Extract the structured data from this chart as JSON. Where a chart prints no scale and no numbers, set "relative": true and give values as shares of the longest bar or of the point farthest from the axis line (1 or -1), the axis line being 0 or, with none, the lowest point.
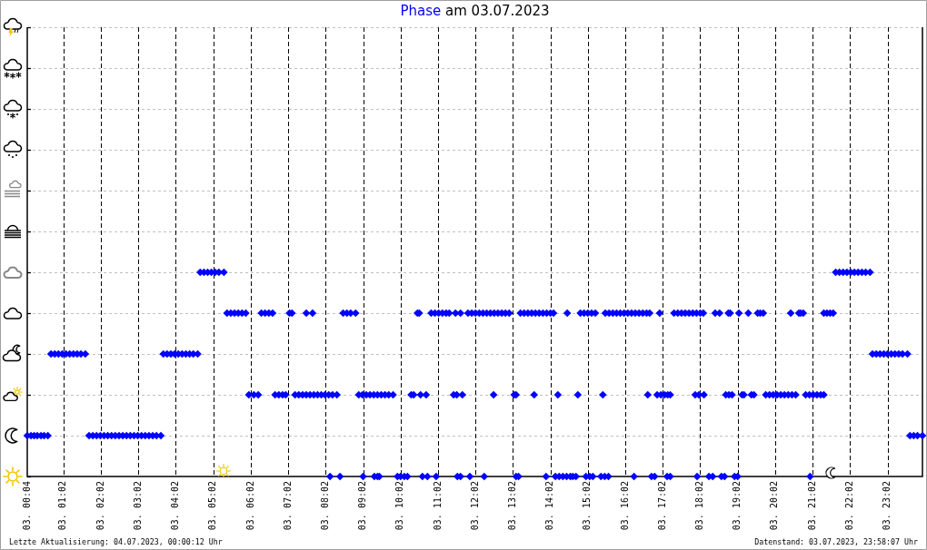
{
  "chart_data": {
    "type": "scatter",
    "title": "Phase am 03.07.2023",
    "annotations": [
      "Letzte Aktualisierung: 04.07.2023, 00:00:12 Uhr",
      "Datenstand: 03.07.2023, 23:58:07 Uhr"
    ],
    "color": "#0000ff",
    "marker": "diamond",
    "grid": true,
    "relative": true,
    "tick_labels": "x",
    "xlim": [
      "2023-07-03T00:04",
      "2023-07-03T23:58"
    ],
    "xticks": [
      {
        "value": "2023-07-03T00:04",
        "label": "03. 00:04"
      },
      {
        "value": "2023-07-03T01:02",
        "label": "03. 01:02"
      },
      {
        "value": "2023-07-03T02:02",
        "label": "03. 02:02"
      },
      {
        "value": "2023-07-03T03:02",
        "label": "03. 03:02"
      },
      {
        "value": "2023-07-03T04:02",
        "label": "03. 04:02"
      },
      {
        "value": "2023-07-03T05:02",
        "label": "03. 05:02"
      },
      {
        "value": "2023-07-03T06:02",
        "label": "03. 06:02"
      },
      {
        "value": "2023-07-03T07:02",
        "label": "03. 07:02"
      },
      {
        "value": "2023-07-03T08:02",
        "label": "03. 08:02"
      },
      {
        "value": "2023-07-03T09:02",
        "label": "03. 09:02"
      },
      {
        "value": "2023-07-03T10:02",
        "label": "03. 10:02"
      },
      {
        "value": "2023-07-03T11:02",
        "label": "03. 11:02"
      },
      {
        "value": "2023-07-03T12:02",
        "label": "03. 12:02"
      },
      {
        "value": "2023-07-03T13:02",
        "label": "03. 13:02"
      },
      {
        "value": "2023-07-03T14:02",
        "label": "03. 14:02"
      },
      {
        "value": "2023-07-03T15:02",
        "label": "03. 15:02"
      },
      {
        "value": "2023-07-03T16:02",
        "label": "03. 16:02"
      },
      {
        "value": "2023-07-03T17:02",
        "label": "03. 17:02"
      },
      {
        "value": "2023-07-03T18:02",
        "label": "03. 18:02"
      },
      {
        "value": "2023-07-03T19:02",
        "label": "03. 19:02"
      },
      {
        "value": "2023-07-03T20:02",
        "label": "03. 20:02"
      },
      {
        "value": "2023-07-03T21:02",
        "label": "03. 21:02"
      },
      {
        "value": "2023-07-03T22:02",
        "label": "03. 22:02"
      },
      {
        "value": "2023-07-03T23:02",
        "label": "03. 23:02"
      }
    ],
    "x": [
      "2023-07-03T00:04",
      "2023-07-03T00:10",
      "2023-07-03T00:15",
      "2023-07-03T00:20",
      "2023-07-03T00:26",
      "2023-07-03T00:31",
      "2023-07-03T00:37",
      "2023-07-03T00:42",
      "2023-07-03T00:48",
      "2023-07-03T00:54",
      "2023-07-03T01:00",
      "2023-07-03T01:06",
      "2023-07-03T01:12",
      "2023-07-03T01:18",
      "2023-07-03T01:24",
      "2023-07-03T01:30",
      "2023-07-03T01:37",
      "2023-07-03T01:43",
      "2023-07-03T01:49",
      "2023-07-03T01:55",
      "2023-07-03T02:01",
      "2023-07-03T02:07",
      "2023-07-03T02:13",
      "2023-07-03T02:19",
      "2023-07-03T02:25",
      "2023-07-03T02:31",
      "2023-07-03T02:37",
      "2023-07-03T02:43",
      "2023-07-03T02:49",
      "2023-07-03T02:55",
      "2023-07-03T03:01",
      "2023-07-03T03:07",
      "2023-07-03T03:13",
      "2023-07-03T03:19",
      "2023-07-03T03:25",
      "2023-07-03T03:31",
      "2023-07-03T03:38",
      "2023-07-03T03:42",
      "2023-07-03T03:48",
      "2023-07-03T03:54",
      "2023-07-03T04:00",
      "2023-07-03T04:06",
      "2023-07-03T04:12",
      "2023-07-03T04:18",
      "2023-07-03T04:24",
      "2023-07-03T04:30",
      "2023-07-03T04:37",
      "2023-07-03T04:41",
      "2023-07-03T04:47",
      "2023-07-03T04:53",
      "2023-07-03T04:59",
      "2023-07-03T05:05",
      "2023-07-03T05:11",
      "2023-07-03T05:19",
      "2023-07-03T05:24",
      "2023-07-03T05:30",
      "2023-07-03T05:36",
      "2023-07-03T05:42",
      "2023-07-03T05:48",
      "2023-07-03T05:54",
      "2023-07-03T05:59",
      "2023-07-03T06:07",
      "2023-07-03T06:14",
      "2023-07-03T06:19",
      "2023-07-03T06:25",
      "2023-07-03T06:31",
      "2023-07-03T06:37",
      "2023-07-03T06:41",
      "2023-07-03T06:47",
      "2023-07-03T06:53",
      "2023-07-03T06:58",
      "2023-07-03T07:04",
      "2023-07-03T07:08",
      "2023-07-03T07:13",
      "2023-07-03T07:19",
      "2023-07-03T07:25",
      "2023-07-03T07:31",
      "2023-07-03T07:37",
      "2023-07-03T07:43",
      "2023-07-03T07:49",
      "2023-07-03T07:55",
      "2023-07-03T08:01",
      "2023-07-03T08:07",
      "2023-07-03T08:13",
      "2023-07-03T08:20",
      "2023-07-03T07:31",
      "2023-07-03T07:41",
      "2023-07-03T08:09",
      "2023-07-03T08:25",
      "2023-07-03T08:30",
      "2023-07-03T08:36",
      "2023-07-03T08:42",
      "2023-07-03T08:50",
      "2023-07-03T08:55",
      "2023-07-03T09:01",
      "2023-07-03T09:07",
      "2023-07-03T09:13",
      "2023-07-03T09:19",
      "2023-07-03T09:25",
      "2023-07-03T09:31",
      "2023-07-03T09:37",
      "2023-07-03T09:43",
      "2023-07-03T09:50",
      "2023-07-03T09:02",
      "2023-07-03T09:20",
      "2023-07-03T09:25",
      "2023-07-03T09:28",
      "2023-07-03T09:57",
      "2023-07-03T10:02",
      "2023-07-03T10:08",
      "2023-07-03T10:13",
      "2023-07-03T10:19",
      "2023-07-03T10:23",
      "2023-07-03T10:34",
      "2023-07-03T10:43",
      "2023-07-03T10:29",
      "2023-07-03T10:32",
      "2023-07-03T10:37",
      "2023-07-03T10:45",
      "2023-07-03T10:59",
      "2023-07-03T10:51",
      "2023-07-03T10:57",
      "2023-07-03T11:03",
      "2023-07-03T11:09",
      "2023-07-03T11:15",
      "2023-07-03T11:20",
      "2023-07-03T11:27",
      "2023-07-03T11:32",
      "2023-07-03T11:41",
      "2023-07-03T11:33",
      "2023-07-03T11:38",
      "2023-07-03T11:53",
      "2023-07-03T11:30",
      "2023-07-03T11:38",
      "2023-07-03T11:50",
      "2023-07-03T11:56",
      "2023-07-03T12:02",
      "2023-07-03T12:08",
      "2023-07-03T12:14",
      "2023-07-03T12:20",
      "2023-07-03T12:26",
      "2023-07-03T12:32",
      "2023-07-03T12:38",
      "2023-07-03T12:44",
      "2023-07-03T12:50",
      "2023-07-03T12:56",
      "2023-07-03T12:16",
      "2023-07-03T12:31",
      "2023-07-03T13:04",
      "2023-07-03T13:07",
      "2023-07-03T13:07",
      "2023-07-03T13:11",
      "2023-07-03T13:14",
      "2023-07-03T13:20",
      "2023-07-03T13:26",
      "2023-07-03T13:32",
      "2023-07-03T13:38",
      "2023-07-03T13:44",
      "2023-07-03T13:50",
      "2023-07-03T13:56",
      "2023-07-03T14:02",
      "2023-07-03T14:07",
      "2023-07-03T13:36",
      "2023-07-03T13:55",
      "2023-07-03T14:10",
      "2023-07-03T14:16",
      "2023-07-03T14:22",
      "2023-07-03T14:28",
      "2023-07-03T14:34",
      "2023-07-03T14:38",
      "2023-07-03T14:43",
      "2023-07-03T14:14",
      "2023-07-03T14:29",
      "2023-07-03T14:46",
      "2023-07-03T14:50",
      "2023-07-03T14:56",
      "2023-07-03T15:02",
      "2023-07-03T15:08",
      "2023-07-03T15:14",
      "2023-07-03T14:59",
      "2023-07-03T15:05",
      "2023-07-03T15:10",
      "2023-07-03T15:23",
      "2023-07-03T15:29",
      "2023-07-03T15:35",
      "2023-07-03T15:26",
      "2023-07-03T15:30",
      "2023-07-03T15:36",
      "2023-07-03T15:42",
      "2023-07-03T15:48",
      "2023-07-03T15:54",
      "2023-07-03T16:00",
      "2023-07-03T16:06",
      "2023-07-03T16:12",
      "2023-07-03T16:18",
      "2023-07-03T16:24",
      "2023-07-03T16:30",
      "2023-07-03T16:36",
      "2023-07-03T16:41",
      "2023-07-03T16:16",
      "2023-07-03T16:38",
      "2023-07-03T16:44",
      "2023-07-03T16:49",
      "2023-07-03T16:57",
      "2023-07-03T16:53",
      "2023-07-03T16:59",
      "2023-07-03T17:05",
      "2023-07-03T17:10",
      "2023-07-03T17:14",
      "2023-07-03T17:09",
      "2023-07-03T17:14",
      "2023-07-03T17:20",
      "2023-07-03T17:26",
      "2023-07-03T17:32",
      "2023-07-03T17:38",
      "2023-07-03T17:44",
      "2023-07-03T17:50",
      "2023-07-03T17:56",
      "2023-07-03T18:02",
      "2023-07-03T18:07",
      "2023-07-03T17:54",
      "2023-07-03T18:00",
      "2023-07-03T18:08",
      "2023-07-03T17:57",
      "2023-07-03T18:16",
      "2023-07-03T18:22",
      "2023-07-03T18:26",
      "2023-07-03T18:33",
      "2023-07-03T18:36",
      "2023-07-03T18:41",
      "2023-07-03T18:43",
      "2023-07-03T18:48",
      "2023-07-03T18:53",
      "2023-07-03T18:47",
      "2023-07-03T18:50",
      "2023-07-03T18:57",
      "2023-07-03T19:02",
      "2023-07-03T19:04",
      "2023-07-03T19:09",
      "2023-07-03T19:12",
      "2023-07-03T19:19",
      "2023-07-03T19:24",
      "2023-07-03T19:28",
      "2023-07-03T19:34",
      "2023-07-03T19:38",
      "2023-07-03T19:43",
      "2023-07-03T19:47",
      "2023-07-03T19:53",
      "2023-07-03T19:59",
      "2023-07-03T20:05",
      "2023-07-03T20:11",
      "2023-07-03T20:17",
      "2023-07-03T20:23",
      "2023-07-03T20:29",
      "2023-07-03T20:35",
      "2023-07-03T20:27",
      "2023-07-03T20:40",
      "2023-07-03T20:43",
      "2023-07-03T20:47",
      "2023-07-03T20:51",
      "2023-07-03T20:57",
      "2023-07-03T21:03",
      "2023-07-03T21:09",
      "2023-07-03T21:15",
      "2023-07-03T21:20",
      "2023-07-03T20:58",
      "2023-07-03T21:20",
      "2023-07-03T21:25",
      "2023-07-03T21:30",
      "2023-07-03T21:35",
      "2023-07-03T21:39",
      "2023-07-03T21:45",
      "2023-07-03T21:51",
      "2023-07-03T21:57",
      "2023-07-03T22:03",
      "2023-07-03T22:09",
      "2023-07-03T22:15",
      "2023-07-03T22:21",
      "2023-07-03T22:27",
      "2023-07-03T22:34",
      "2023-07-03T22:38",
      "2023-07-03T22:44",
      "2023-07-03T22:50",
      "2023-07-03T22:56",
      "2023-07-03T23:02",
      "2023-07-03T23:08",
      "2023-07-03T23:14",
      "2023-07-03T23:20",
      "2023-07-03T23:26",
      "2023-07-03T23:34",
      "2023-07-03T23:38",
      "2023-07-03T23:44",
      "2023-07-03T23:50",
      "2023-07-03T23:58"
    ],
    "values": [
      0.2,
      0.2,
      0.2,
      0.2,
      0.2,
      0.2,
      0.2,
      0.6,
      0.6,
      0.6,
      0.6,
      0.6,
      0.6,
      0.6,
      0.6,
      0.6,
      0.6,
      0.2,
      0.2,
      0.2,
      0.2,
      0.2,
      0.2,
      0.2,
      0.2,
      0.2,
      0.2,
      0.2,
      0.2,
      0.2,
      0.2,
      0.2,
      0.2,
      0.2,
      0.2,
      0.2,
      0.2,
      0.6,
      0.6,
      0.6,
      0.6,
      0.6,
      0.6,
      0.6,
      0.6,
      0.6,
      0.6,
      1,
      1,
      1,
      1,
      1,
      1,
      1,
      0.8,
      0.8,
      0.8,
      0.8,
      0.8,
      0.8,
      0.4,
      0.4,
      0.4,
      0.8,
      0.8,
      0.8,
      0.8,
      0.4,
      0.4,
      0.4,
      0.4,
      0.8,
      0.8,
      0.4,
      0.4,
      0.4,
      0.4,
      0.4,
      0.4,
      0.4,
      0.4,
      0.4,
      0.4,
      0.4,
      0.4,
      0.8,
      0.8,
      0,
      0,
      0.8,
      0.8,
      0.8,
      0.8,
      0.4,
      0.4,
      0.4,
      0.4,
      0.4,
      0.4,
      0.4,
      0.4,
      0.4,
      0.4,
      0,
      0,
      0,
      0,
      0,
      0,
      0,
      0,
      0.4,
      0.4,
      0.4,
      0.4,
      0.8,
      0.8,
      0,
      0,
      0,
      0.8,
      0.8,
      0.8,
      0.8,
      0.8,
      0.8,
      0.4,
      0.4,
      0.4,
      0,
      0,
      0,
      0.8,
      0.8,
      0.8,
      0.8,
      0.8,
      0.8,
      0.8,
      0.8,
      0.8,
      0.8,
      0.8,
      0.8,
      0.8,
      0.8,
      0,
      0.4,
      0.4,
      0.4,
      0,
      0,
      0.8,
      0.8,
      0.8,
      0.8,
      0.8,
      0.8,
      0.8,
      0.8,
      0.8,
      0.8,
      0.4,
      0,
      0,
      0,
      0,
      0,
      0,
      0,
      0,
      0.4,
      0.8,
      0.4,
      0.8,
      0.8,
      0.8,
      0.8,
      0.8,
      0,
      0,
      0,
      0,
      0,
      0,
      0.4,
      0.8,
      0.8,
      0.8,
      0.8,
      0.8,
      0.8,
      0.8,
      0.8,
      0.8,
      0.8,
      0.8,
      0.8,
      0.8,
      0,
      0.4,
      0,
      0,
      0.8,
      0.4,
      0.4,
      0.4,
      0.4,
      0.4,
      0,
      0,
      0.8,
      0.8,
      0.8,
      0.8,
      0.8,
      0.8,
      0.8,
      0.8,
      0.8,
      0.4,
      0.4,
      0.4,
      0,
      0,
      0,
      0.8,
      0.8,
      0,
      0,
      0.4,
      0.4,
      0.4,
      0.8,
      0.8,
      0,
      0,
      0.8,
      0.4,
      0.4,
      0.8,
      0.4,
      0.4,
      0.8,
      0.8,
      0.8,
      0.4,
      0.4,
      0.4,
      0.4,
      0.4,
      0.4,
      0.4,
      0.4,
      0.4,
      0.8,
      0.8,
      0.8,
      0.8,
      0.4,
      0.4,
      0.4,
      0.4,
      0.4,
      0.4,
      0,
      0.8,
      0.8,
      0.8,
      0.8,
      1,
      1,
      1,
      1,
      1,
      1,
      1,
      1,
      1,
      1,
      0.6,
      0.6,
      0.6,
      0.6,
      0.6,
      0.6,
      0.6,
      0.6,
      0.6,
      0.6,
      0.2,
      0.2,
      0.2,
      0.2
    ]
  }
}
